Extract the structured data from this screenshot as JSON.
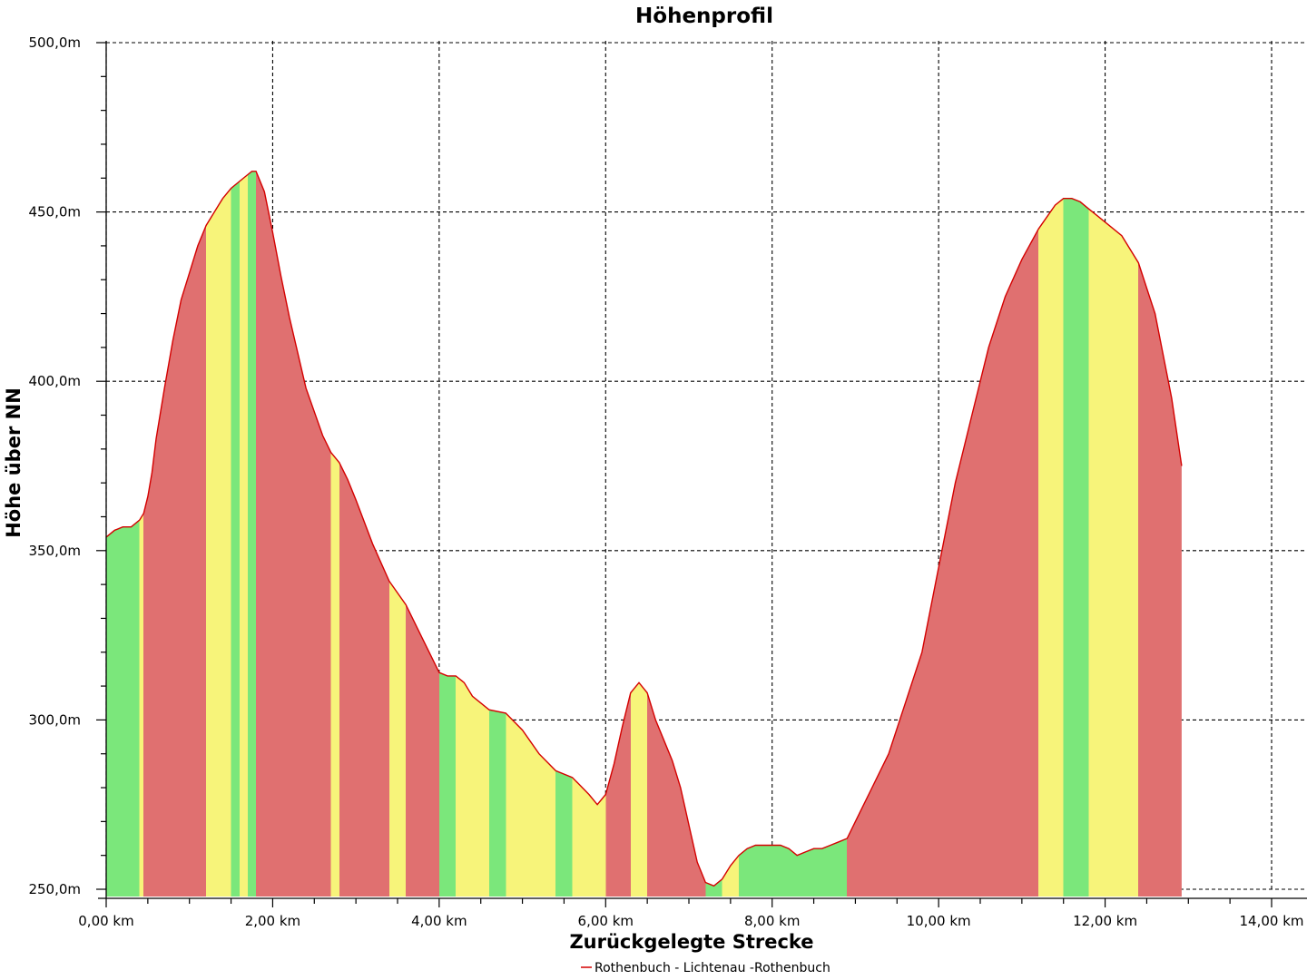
{
  "chart_data": {
    "type": "area",
    "title": "Höhenprofil",
    "xlabel": "Zurückgelegte Strecke",
    "ylabel": "Höhe über NN",
    "xlim": [
      0,
      14
    ],
    "ylim": [
      250,
      500
    ],
    "x_ticks": [
      0,
      2,
      4,
      6,
      8,
      10,
      12,
      14
    ],
    "x_tick_labels": [
      "0,00 km",
      "2,00 km",
      "4,00 km",
      "6,00 km",
      "8,00 km",
      "10,00 km",
      "12,00 km",
      "14,00 km"
    ],
    "y_ticks": [
      250,
      300,
      350,
      400,
      450,
      500
    ],
    "y_tick_labels": [
      "250,0m",
      "300,0m",
      "350,0m",
      "400,0m",
      "450,0m",
      "500,0m"
    ],
    "grid": true,
    "legend_position": "bottom-center",
    "line_color": "#d40000",
    "gradient_colors": {
      "flat": "#7be77b",
      "moderate": "#f7f47a",
      "steep": "#e07070"
    },
    "series": [
      {
        "name": "Rothenbuch - Lichtenau -Rothenbuch",
        "x": [
          0,
          0.1,
          0.2,
          0.3,
          0.4,
          0.45,
          0.5,
          0.55,
          0.6,
          0.7,
          0.8,
          0.9,
          1.0,
          1.1,
          1.2,
          1.3,
          1.35,
          1.4,
          1.5,
          1.6,
          1.7,
          1.75,
          1.8,
          1.9,
          2.0,
          2.1,
          2.2,
          2.4,
          2.6,
          2.7,
          2.8,
          2.9,
          3.0,
          3.2,
          3.4,
          3.6,
          3.8,
          4.0,
          4.1,
          4.2,
          4.3,
          4.4,
          4.6,
          4.8,
          5.0,
          5.2,
          5.4,
          5.6,
          5.8,
          5.9,
          6.0,
          6.1,
          6.2,
          6.3,
          6.4,
          6.5,
          6.6,
          6.7,
          6.8,
          6.9,
          7.0,
          7.1,
          7.2,
          7.3,
          7.4,
          7.5,
          7.6,
          7.7,
          7.8,
          7.9,
          8.0,
          8.1,
          8.2,
          8.3,
          8.4,
          8.5,
          8.6,
          8.7,
          8.8,
          8.9,
          9.0,
          9.2,
          9.4,
          9.6,
          9.8,
          10.0,
          10.2,
          10.4,
          10.6,
          10.8,
          11.0,
          11.2,
          11.4,
          11.5,
          11.6,
          11.7,
          11.8,
          11.9,
          12.0,
          12.2,
          12.4,
          12.6,
          12.8,
          12.92
        ],
        "y": [
          354,
          356,
          357,
          357,
          359,
          361,
          366,
          373,
          383,
          398,
          412,
          424,
          432,
          440,
          446,
          450,
          452,
          454,
          457,
          459,
          461,
          462,
          462,
          456,
          444,
          431,
          419,
          398,
          384,
          379,
          376,
          371,
          365,
          352,
          341,
          334,
          324,
          314,
          313,
          313,
          311,
          307,
          303,
          302,
          297,
          290,
          285,
          283,
          278,
          275,
          278,
          287,
          298,
          308,
          311,
          308,
          300,
          294,
          288,
          280,
          269,
          258,
          252,
          251,
          253,
          257,
          260,
          262,
          263,
          263,
          263,
          263,
          262,
          260,
          261,
          262,
          262,
          263,
          264,
          265,
          270,
          280,
          290,
          305,
          320,
          345,
          370,
          390,
          410,
          425,
          436,
          445,
          452,
          454,
          454,
          453,
          451,
          449,
          447,
          443,
          435,
          420,
          395,
          375
        ]
      }
    ]
  }
}
